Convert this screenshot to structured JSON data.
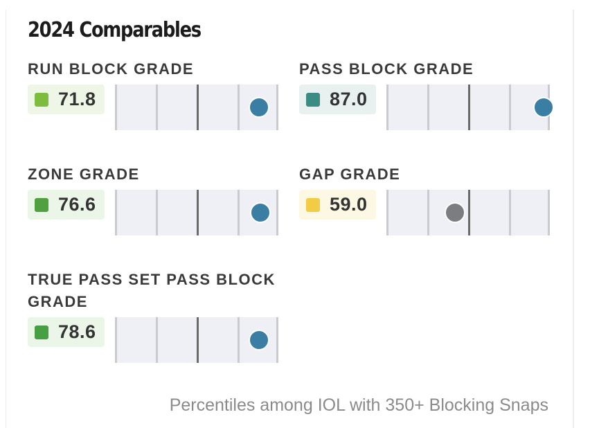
{
  "title": "2024 Comparables",
  "footnote": "Percentiles among IOL with 350+ Blocking Snaps",
  "colors": {
    "dot_blue": "#3a7fa3",
    "dot_gray": "#7b7d80",
    "median_tick": "#6b6b6b"
  },
  "metrics": [
    {
      "label": "RUN BLOCK GRADE",
      "value": "71.8",
      "swatch_color": "#7dbd3d",
      "badge_bg": "#eef7e7",
      "percentile": 0.88,
      "dot_color": "#3a7fa3"
    },
    {
      "label": "PASS BLOCK GRADE",
      "value": "87.0",
      "swatch_color": "#3a8c84",
      "badge_bg": "#e8f1f0",
      "percentile": 0.96,
      "dot_color": "#3a7fa3"
    },
    {
      "label": "ZONE GRADE",
      "value": "76.6",
      "swatch_color": "#4ea13e",
      "badge_bg": "#ebf5e8",
      "percentile": 0.89,
      "dot_color": "#3a7fa3"
    },
    {
      "label": "GAP GRADE",
      "value": "59.0",
      "swatch_color": "#f2cc45",
      "badge_bg": "#fdf8e4",
      "percentile": 0.42,
      "dot_color": "#7b7d80"
    },
    {
      "label": "TRUE PASS SET PASS BLOCK GRADE",
      "value": "78.6",
      "swatch_color": "#46a043",
      "badge_bg": "#ebf5e8",
      "percentile": 0.88,
      "dot_color": "#3a7fa3"
    }
  ]
}
